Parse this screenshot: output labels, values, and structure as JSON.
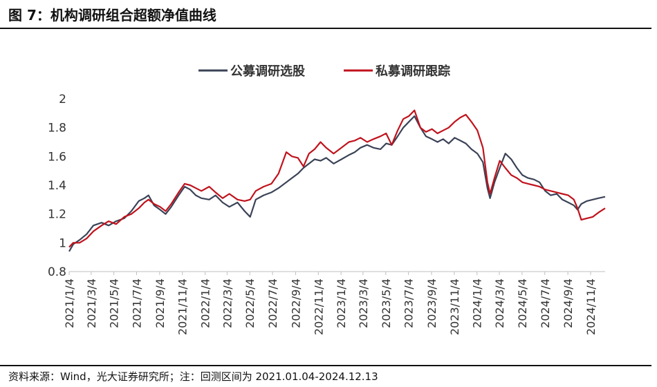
{
  "header": {
    "title": "图 7：机构调研组合超额净值曲线"
  },
  "footer": {
    "source": "资料来源：Wind，光大证券研究所；注：回测区间为 2021.01.04-2024.12.13"
  },
  "chart_data": {
    "type": "line",
    "title": "",
    "xlabel": "",
    "ylabel": "",
    "ylim": [
      0.8,
      2.0
    ],
    "yticks": [
      "0.8",
      "1",
      "1.2",
      "1.4",
      "1.6",
      "1.8",
      "2"
    ],
    "xlim": [
      "2021-01-04",
      "2024-12-13"
    ],
    "xticks": [
      "2021/1/4",
      "2021/3/4",
      "2021/5/4",
      "2021/7/4",
      "2021/9/4",
      "2021/11/4",
      "2022/1/4",
      "2022/3/4",
      "2022/5/4",
      "2022/7/4",
      "2022/9/4",
      "2022/11/4",
      "2023/1/4",
      "2023/3/4",
      "2023/5/4",
      "2023/7/4",
      "2023/9/4",
      "2023/11/4",
      "2024/1/4",
      "2024/3/4",
      "2024/5/4",
      "2024/7/4",
      "2024/9/4",
      "2024/11/4"
    ],
    "grid": false,
    "legend_position": "top-center",
    "series": [
      {
        "name": "公募调研选股",
        "color": "#3a4256",
        "x": [
          "2021-01-04",
          "2021-01-15",
          "2021-02-01",
          "2021-02-20",
          "2021-03-10",
          "2021-04-01",
          "2021-04-20",
          "2021-05-10",
          "2021-06-01",
          "2021-06-20",
          "2021-07-10",
          "2021-07-25",
          "2021-08-05",
          "2021-08-20",
          "2021-09-05",
          "2021-09-20",
          "2021-10-05",
          "2021-10-25",
          "2021-11-10",
          "2021-11-25",
          "2021-12-10",
          "2021-12-25",
          "2022-01-15",
          "2022-02-01",
          "2022-02-20",
          "2022-03-10",
          "2022-04-01",
          "2022-04-20",
          "2022-05-05",
          "2022-05-20",
          "2022-06-10",
          "2022-07-01",
          "2022-07-20",
          "2022-08-10",
          "2022-08-25",
          "2022-09-10",
          "2022-09-25",
          "2022-10-10",
          "2022-10-25",
          "2022-11-10",
          "2022-11-25",
          "2022-12-15",
          "2023-01-05",
          "2023-01-25",
          "2023-02-10",
          "2023-02-25",
          "2023-03-15",
          "2023-04-01",
          "2023-04-20",
          "2023-05-05",
          "2023-05-20",
          "2023-06-05",
          "2023-06-20",
          "2023-07-05",
          "2023-07-20",
          "2023-08-05",
          "2023-08-20",
          "2023-09-05",
          "2023-09-20",
          "2023-10-05",
          "2023-10-20",
          "2023-11-05",
          "2023-11-20",
          "2023-12-05",
          "2023-12-20",
          "2024-01-05",
          "2024-01-20",
          "2024-02-01",
          "2024-02-08",
          "2024-02-20",
          "2024-03-05",
          "2024-03-20",
          "2024-04-05",
          "2024-04-20",
          "2024-05-05",
          "2024-05-20",
          "2024-06-05",
          "2024-06-20",
          "2024-07-05",
          "2024-07-20",
          "2024-08-05",
          "2024-08-20",
          "2024-09-05",
          "2024-09-20",
          "2024-09-30",
          "2024-10-10",
          "2024-10-25",
          "2024-11-10",
          "2024-11-25",
          "2024-12-13"
        ],
        "values": [
          0.94,
          0.99,
          1.02,
          1.06,
          1.12,
          1.14,
          1.12,
          1.15,
          1.17,
          1.22,
          1.29,
          1.31,
          1.33,
          1.26,
          1.23,
          1.2,
          1.25,
          1.33,
          1.39,
          1.37,
          1.33,
          1.31,
          1.3,
          1.33,
          1.28,
          1.25,
          1.28,
          1.22,
          1.18,
          1.3,
          1.33,
          1.35,
          1.38,
          1.42,
          1.45,
          1.48,
          1.52,
          1.55,
          1.58,
          1.57,
          1.59,
          1.55,
          1.58,
          1.61,
          1.63,
          1.66,
          1.68,
          1.66,
          1.65,
          1.69,
          1.68,
          1.74,
          1.8,
          1.84,
          1.88,
          1.8,
          1.74,
          1.72,
          1.7,
          1.72,
          1.69,
          1.73,
          1.71,
          1.69,
          1.65,
          1.62,
          1.56,
          1.38,
          1.31,
          1.42,
          1.52,
          1.62,
          1.58,
          1.52,
          1.47,
          1.45,
          1.44,
          1.42,
          1.36,
          1.33,
          1.34,
          1.3,
          1.28,
          1.26,
          1.23,
          1.27,
          1.29,
          1.3,
          1.31,
          1.32
        ]
      },
      {
        "name": "私募调研跟踪",
        "color": "#c0121c",
        "x": [
          "2021-01-04",
          "2021-01-15",
          "2021-02-01",
          "2021-02-20",
          "2021-03-10",
          "2021-04-01",
          "2021-04-20",
          "2021-05-10",
          "2021-06-01",
          "2021-06-20",
          "2021-07-10",
          "2021-07-25",
          "2021-08-05",
          "2021-08-20",
          "2021-09-05",
          "2021-09-20",
          "2021-10-05",
          "2021-10-25",
          "2021-11-10",
          "2021-11-25",
          "2021-12-10",
          "2021-12-25",
          "2022-01-15",
          "2022-02-01",
          "2022-02-20",
          "2022-03-10",
          "2022-04-01",
          "2022-04-20",
          "2022-05-05",
          "2022-05-20",
          "2022-06-10",
          "2022-07-01",
          "2022-07-20",
          "2022-08-10",
          "2022-08-25",
          "2022-09-10",
          "2022-09-25",
          "2022-10-10",
          "2022-10-25",
          "2022-11-10",
          "2022-11-25",
          "2022-12-15",
          "2023-01-05",
          "2023-01-25",
          "2023-02-10",
          "2023-02-25",
          "2023-03-15",
          "2023-04-01",
          "2023-04-20",
          "2023-05-05",
          "2023-05-20",
          "2023-06-05",
          "2023-06-20",
          "2023-07-05",
          "2023-07-20",
          "2023-08-05",
          "2023-08-20",
          "2023-09-05",
          "2023-09-20",
          "2023-10-05",
          "2023-10-20",
          "2023-11-05",
          "2023-11-20",
          "2023-12-05",
          "2023-12-20",
          "2024-01-05",
          "2024-01-20",
          "2024-02-01",
          "2024-02-08",
          "2024-02-20",
          "2024-03-05",
          "2024-03-20",
          "2024-04-05",
          "2024-04-20",
          "2024-05-05",
          "2024-05-20",
          "2024-06-05",
          "2024-06-20",
          "2024-07-05",
          "2024-07-20",
          "2024-08-05",
          "2024-08-20",
          "2024-09-05",
          "2024-09-20",
          "2024-09-30",
          "2024-10-10",
          "2024-10-25",
          "2024-11-10",
          "2024-11-25",
          "2024-12-13"
        ],
        "values": [
          0.97,
          1.0,
          1.0,
          1.03,
          1.08,
          1.12,
          1.15,
          1.13,
          1.18,
          1.2,
          1.24,
          1.28,
          1.3,
          1.27,
          1.25,
          1.22,
          1.27,
          1.35,
          1.41,
          1.4,
          1.38,
          1.36,
          1.39,
          1.35,
          1.31,
          1.34,
          1.3,
          1.29,
          1.3,
          1.36,
          1.39,
          1.41,
          1.48,
          1.63,
          1.6,
          1.59,
          1.53,
          1.62,
          1.65,
          1.7,
          1.66,
          1.62,
          1.66,
          1.7,
          1.71,
          1.73,
          1.7,
          1.72,
          1.74,
          1.76,
          1.68,
          1.78,
          1.86,
          1.88,
          1.92,
          1.8,
          1.77,
          1.79,
          1.76,
          1.78,
          1.8,
          1.84,
          1.87,
          1.89,
          1.84,
          1.78,
          1.66,
          1.42,
          1.34,
          1.45,
          1.57,
          1.52,
          1.47,
          1.45,
          1.42,
          1.41,
          1.4,
          1.39,
          1.37,
          1.36,
          1.35,
          1.34,
          1.33,
          1.3,
          1.24,
          1.16,
          1.17,
          1.18,
          1.21,
          1.24
        ]
      }
    ]
  }
}
